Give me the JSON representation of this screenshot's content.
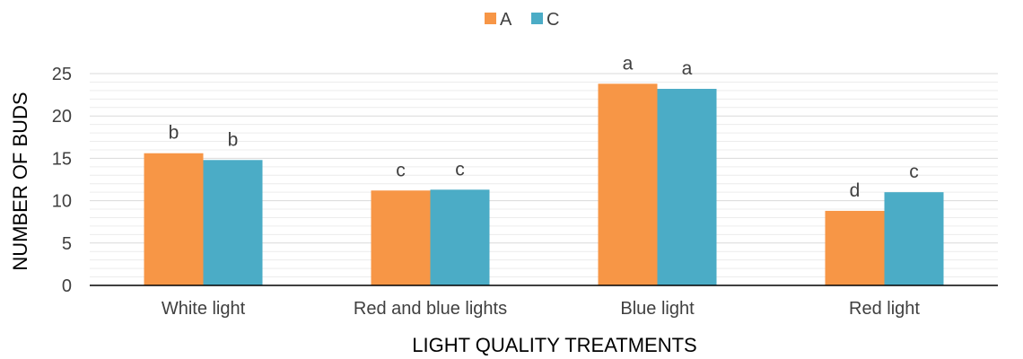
{
  "chart_data": {
    "type": "bar",
    "categories": [
      "White light",
      "Red and blue lights",
      "Blue light",
      "Red light"
    ],
    "series": [
      {
        "name": "A",
        "color": "#F79646",
        "values": [
          15.6,
          11.2,
          23.8,
          8.8
        ],
        "labels": [
          "b",
          "c",
          "a",
          "d"
        ]
      },
      {
        "name": "C",
        "color": "#4BACC6",
        "values": [
          14.8,
          11.3,
          23.2,
          11.0
        ],
        "labels": [
          "b",
          "c",
          "a",
          "c"
        ]
      }
    ],
    "xlabel": "LIGHT QUALITY TREATMENTS",
    "ylabel": "NUMBER OF BUDS",
    "ylim": [
      0,
      25
    ],
    "yticks": [
      0,
      5,
      10,
      15,
      20,
      25
    ],
    "grid": true,
    "legend_position": "top-center"
  }
}
